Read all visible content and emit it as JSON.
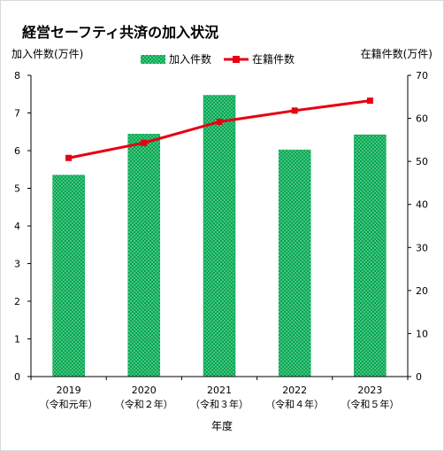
{
  "title": "経営セーフティ共済の加入状況",
  "chart_data": {
    "type": "bar",
    "categories": [
      "2019",
      "2020",
      "2021",
      "2022",
      "2023"
    ],
    "category_sub": [
      "（令和元年）",
      "（令和２年）",
      "（令和３年）",
      "（令和４年）",
      "（令和５年）"
    ],
    "series": [
      {
        "name": "加入件数",
        "type": "bar",
        "axis": "left",
        "values": [
          5.35,
          6.44,
          7.47,
          6.02,
          6.42
        ]
      },
      {
        "name": "在籍件数",
        "type": "line",
        "axis": "right",
        "values": [
          50.8,
          54.3,
          59.2,
          61.8,
          64.1
        ]
      }
    ],
    "ylabel": "加入件数(万件)",
    "y2label": "在籍件数(万件)",
    "xlabel": "年度",
    "ylim": [
      0,
      8
    ],
    "y2lim": [
      0,
      70
    ],
    "yticks": [
      0,
      1,
      2,
      3,
      4,
      5,
      6,
      7,
      8
    ],
    "y2ticks": [
      0,
      10,
      20,
      30,
      40,
      50,
      60,
      70
    ],
    "legend_position": "top",
    "grid": false
  },
  "colors": {
    "bar": "#00a651",
    "bar_pattern": "#b7f0c8",
    "line": "#e60012",
    "marker": "#e60012"
  }
}
